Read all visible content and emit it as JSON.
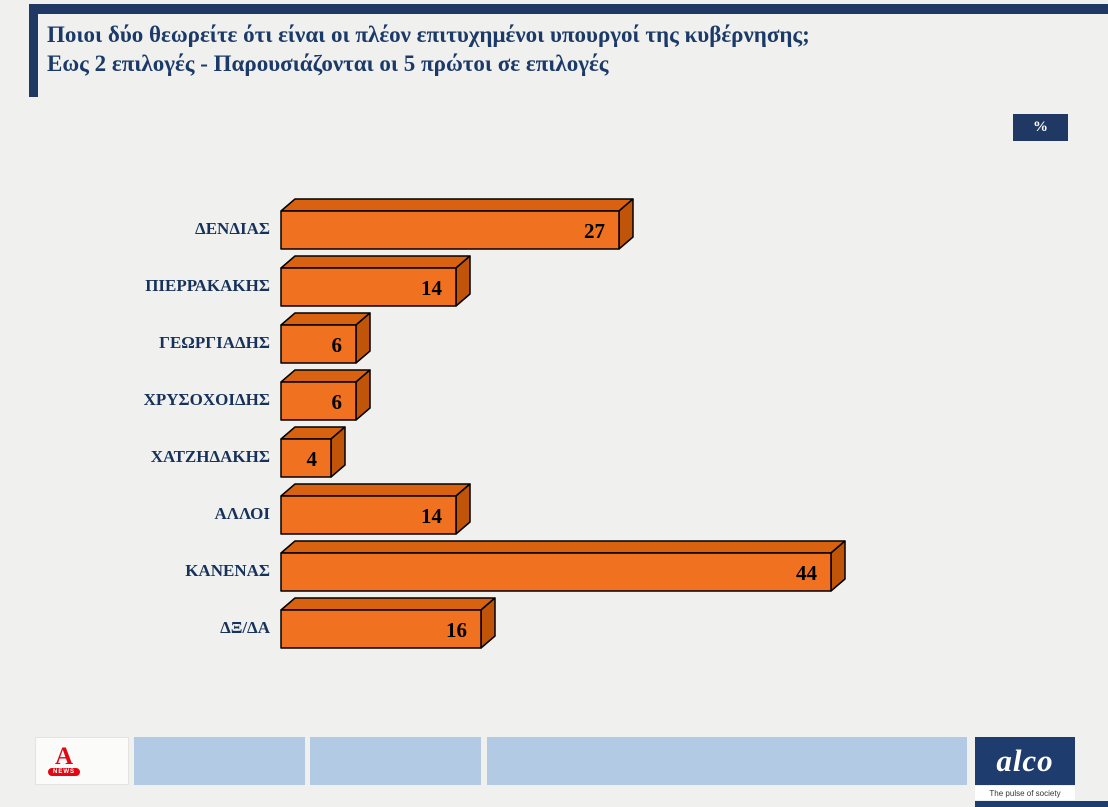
{
  "title": {
    "line1": "Ποιοι δύο θεωρείτε ότι είναι οι πλέον επιτυχημένοι υπουργοί της κυβέρνησης;",
    "line2": "Εως 2 επιλογές - Παρουσιάζονται οι 5 πρώτοι σε επιλογές"
  },
  "unit_badge": "%",
  "chart_data": {
    "type": "bar",
    "orientation": "horizontal",
    "style": "3d",
    "title": "Ποιοι δύο θεωρείτε ότι είναι οι πλέον επιτυχημένοι υπουργοί της κυβέρνησης;",
    "subtitle": "Εως 2 επιλογές - Παρουσιάζονται οι 5 πρώτοι σε επιλογές",
    "unit": "%",
    "categories": [
      "ΔΕΝΔΙΑΣ",
      "ΠΙΕΡΡΑΚΑΚΗΣ",
      "ΓΕΩΡΓΙΑΔΗΣ",
      "ΧΡΥΣΟΧΟΙΔΗΣ",
      "ΧΑΤΖΗΔΑΚΗΣ",
      "ΑΛΛΟΙ",
      "ΚΑΝΕΝΑΣ",
      "ΔΞ/ΔΑ"
    ],
    "values": [
      27,
      14,
      6,
      6,
      4,
      14,
      44,
      16
    ],
    "xlim": [
      0,
      48
    ],
    "grid": false,
    "legend": false,
    "value_labels": "inside-right"
  },
  "colors": {
    "navy": "#1f3864",
    "title_text": "#1b3a68",
    "orange": "#f0711f",
    "orange_top": "#d96210",
    "orange_side": "#c05409",
    "background": "#f0f0ee",
    "footer_blue": "#b3cae4",
    "alpha_red": "#e30613"
  },
  "footer": {
    "alpha_logo": {
      "letter": "A",
      "news": "NEWS"
    },
    "alco_logo": {
      "name": "alco",
      "tagline": "The pulse of society"
    }
  }
}
